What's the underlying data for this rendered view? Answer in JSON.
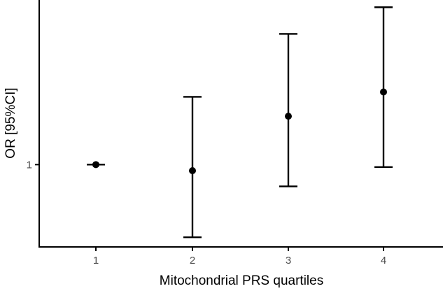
{
  "chart_data": {
    "type": "scatter",
    "subtype": "point-with-error-bars",
    "title": "",
    "xlabel": "Mitochondrial PRS quartiles",
    "ylabel": "OR [95%CI]",
    "categories": [
      "1",
      "2",
      "3",
      "4"
    ],
    "y_ticks": [
      1
    ],
    "y_tick_labels": [
      "1"
    ],
    "ylim": [
      0.66,
      1.68
    ],
    "grid": false,
    "legend": "none",
    "series": [
      {
        "points": [
          {
            "x": "1",
            "or": 1.0,
            "lower": 1.0,
            "upper": 1.0
          },
          {
            "x": "2",
            "or": 0.975,
            "lower": 0.7,
            "upper": 1.28
          },
          {
            "x": "3",
            "or": 1.2,
            "lower": 0.91,
            "upper": 1.54
          },
          {
            "x": "4",
            "or": 1.3,
            "lower": 0.99,
            "upper": 1.65
          }
        ]
      }
    ],
    "colors": {
      "points": "#000000",
      "axes": "#000000",
      "tick_labels": "#4d4d4d"
    }
  }
}
